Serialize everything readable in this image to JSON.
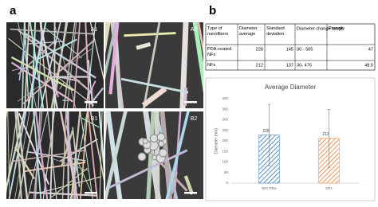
{
  "panels": {
    "a": "a",
    "b": "b"
  },
  "images": [
    "A1",
    "A2",
    "B1",
    "B2"
  ],
  "table": {
    "header": [
      "Type of nanofibers",
      "Diameter average",
      "Standard deviation",
      "Diameter change range",
      "Porosity"
    ],
    "rows": [
      [
        "PDA-coated NFs",
        228,
        145,
        "30 - 505",
        47
      ],
      [
        "NFs",
        212,
        137,
        "30- 476",
        48.5
      ]
    ]
  },
  "chart_data": {
    "type": "bar",
    "title": "Average Diameter",
    "ylabel": "Diameter (nm)",
    "categories": [
      "NFs PDA",
      "NFs"
    ],
    "values": [
      228,
      212
    ],
    "errors": [
      145,
      137
    ],
    "colors": [
      "#2e75b6",
      "#ed7d31"
    ],
    "hatch": true,
    "ylim": [
      0,
      400
    ],
    "yticks": [
      0,
      50,
      100,
      150,
      200,
      250,
      300,
      350,
      400
    ],
    "grid": false
  }
}
